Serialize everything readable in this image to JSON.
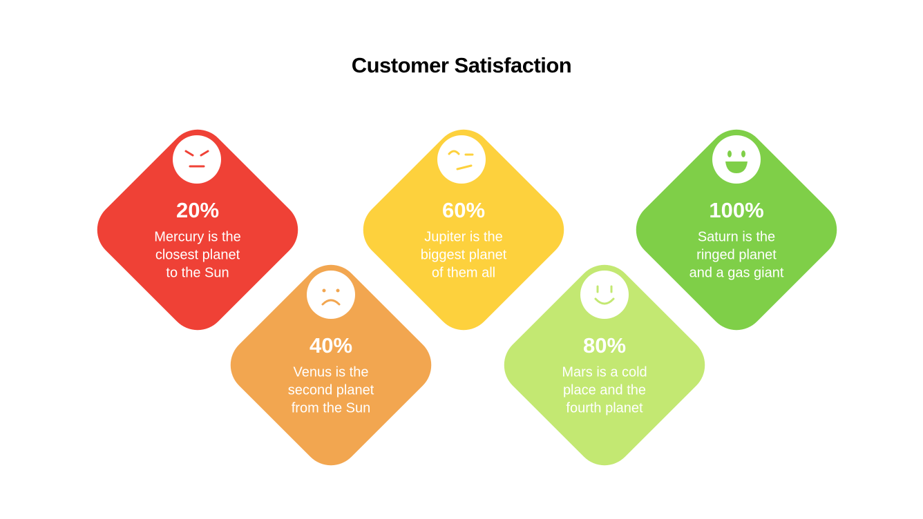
{
  "title": "Customer Satisfaction",
  "items": [
    {
      "percent": "20%",
      "lines": [
        "Mercury is the",
        "closest planet",
        "to the Sun"
      ],
      "color": "#ef4136"
    },
    {
      "percent": "40%",
      "lines": [
        "Venus is the",
        "second planet",
        "from the Sun"
      ],
      "color": "#f2a650"
    },
    {
      "percent": "60%",
      "lines": [
        "Jupiter is the",
        "biggest planet",
        "of them all"
      ],
      "color": "#fdd13d"
    },
    {
      "percent": "80%",
      "lines": [
        "Mars is a cold",
        "place and the",
        "fourth planet"
      ],
      "color": "#c3e872"
    },
    {
      "percent": "100%",
      "lines": [
        "Saturn is the",
        "ringed planet",
        "and a gas giant"
      ],
      "color": "#7fcf48"
    }
  ]
}
